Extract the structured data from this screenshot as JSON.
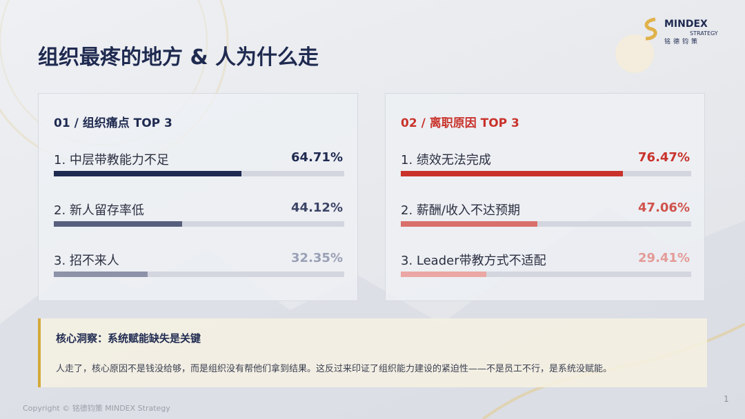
{
  "header": {
    "title": "组织最疼的地方 & 人为什么走",
    "logo_name": "MINDEX",
    "logo_sub": "STRATEGY",
    "logo_cn": "铭德钧策"
  },
  "panels": [
    {
      "title": "01 / 组织痛点 TOP 3",
      "type": "bar",
      "categories": [
        "1. 中层带教能力不足",
        "2. 新人留存率低",
        "3. 招不来人"
      ],
      "values": [
        64.71,
        44.12,
        32.35
      ],
      "value_labels": [
        "64.71%",
        "44.12%",
        "32.35%"
      ],
      "colors": [
        "#1f2a50",
        "#575f7d",
        "#8d92a8"
      ],
      "label_colors": [
        "#1f2a50",
        "#3c4466",
        "#9aa0b5"
      ],
      "title_color": "#1f2a50",
      "xlim": [
        0,
        100
      ]
    },
    {
      "title": "02 / 离职原因 TOP 3",
      "type": "bar",
      "categories": [
        "1. 绩效无法完成",
        "2. 薪酬/收入不达预期",
        "3. Leader带教方式不适配"
      ],
      "values": [
        76.47,
        47.06,
        29.41
      ],
      "value_labels": [
        "76.47%",
        "47.06%",
        "29.41%"
      ],
      "colors": [
        "#c9322b",
        "#d9706b",
        "#eaa7a3"
      ],
      "label_colors": [
        "#c9322b",
        "#d0524c",
        "#e49a96"
      ],
      "title_color": "#c9322b",
      "xlim": [
        0,
        100
      ]
    }
  ],
  "insight": {
    "title": "核心洞察：系统赋能缺失是关键",
    "body": "人走了，核心原因不是钱没给够，而是组织没有帮他们拿到结果。这反过来印证了组织能力建设的紧迫性——不是员工不行，是系统没赋能。"
  },
  "footer": {
    "copyright": "Copyright © 铭德钧策 MINDEX Strategy",
    "page": "1"
  }
}
